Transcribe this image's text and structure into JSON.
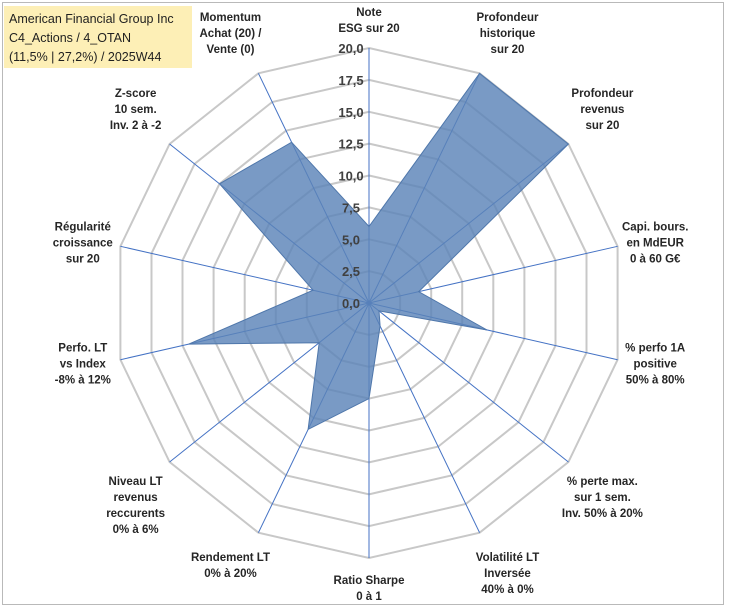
{
  "title": {
    "line1": "American Financial Group Inc",
    "line2": "C4_Actions / 4_OTAN",
    "line3": "(11,5% | 27,2%) / 2025W44"
  },
  "colors": {
    "fill": "#5b84b8",
    "stroke": "#4f77ab",
    "grid": "#c8c8c8",
    "spoke": "#4472c4"
  },
  "chart_data": {
    "type": "radar",
    "rmin": 0,
    "rmax": 20,
    "tick_step": 2.5,
    "tick_labels": [
      "0,0",
      "2,5",
      "5,0",
      "7,5",
      "10,0",
      "12,5",
      "15,0",
      "17,5",
      "20,0"
    ],
    "axes": [
      {
        "label": [
          "Note",
          "ESG sur 20"
        ],
        "value": 6
      },
      {
        "label": [
          "Profondeur",
          "historique",
          "sur 20"
        ],
        "value": 20
      },
      {
        "label": [
          "Profondeur",
          "revenus",
          "sur 20"
        ],
        "value": 20
      },
      {
        "label": [
          "Capi. bours.",
          "en MdEUR",
          "0 à 60 G€"
        ],
        "value": 4
      },
      {
        "label": [
          "% perfo 1A",
          "positive",
          "50% à 80%"
        ],
        "value": 9.5
      },
      {
        "label": [
          "% perte max.",
          "sur 1 sem.",
          "Inv. 50% à 20%"
        ],
        "value": 1
      },
      {
        "label": [
          "Volatilité LT",
          "Inversée",
          "40% à 0%"
        ],
        "value": 2
      },
      {
        "label": [
          "Ratio Sharpe",
          "0 à 1"
        ],
        "value": 7.5
      },
      {
        "label": [
          "Rendement LT",
          "0% à 20%"
        ],
        "value": 11
      },
      {
        "label": [
          "Niveau LT",
          "revenus",
          "reccurents",
          "0% à 6%"
        ],
        "value": 5
      },
      {
        "label": [
          "Perfo. LT",
          "vs Index",
          "-8% à 12%"
        ],
        "value": 14.5
      },
      {
        "label": [
          "Régularité",
          "croissance",
          "sur 20"
        ],
        "value": 4.5
      },
      {
        "label": [
          "Z-score",
          "10 sem.",
          "Inv. 2 à -2"
        ],
        "value": 15
      },
      {
        "label": [
          "Momentum",
          "Achat (20) /",
          "Vente (0)"
        ],
        "value": 14
      }
    ]
  }
}
